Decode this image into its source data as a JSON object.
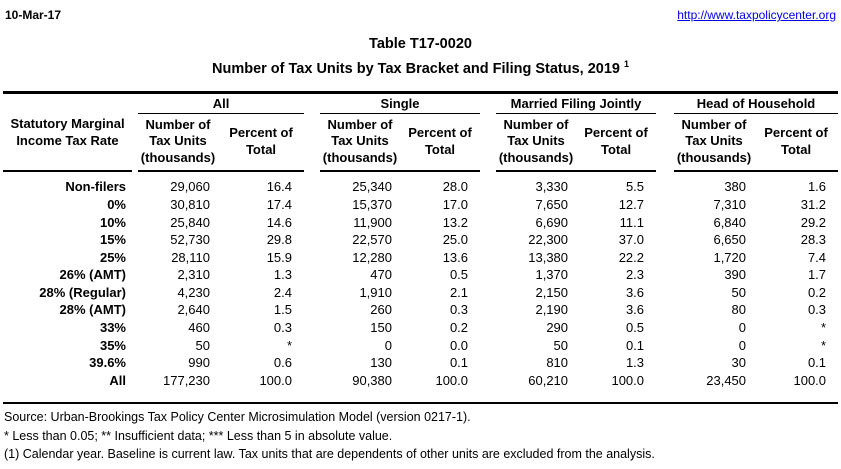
{
  "header": {
    "date": "10-Mar-17",
    "url": "http://www.taxpolicycenter.org"
  },
  "title": {
    "table_number": "Table T17-0020",
    "main": "Number of Tax Units by Tax Bracket and Filing Status, 2019",
    "footnote_ref": "1"
  },
  "table": {
    "row_header_label": "Statutory Marginal\nIncome Tax Rate",
    "groups": [
      {
        "label": "All"
      },
      {
        "label": "Single"
      },
      {
        "label": "Married Filing Jointly"
      },
      {
        "label": "Head of Household"
      }
    ],
    "sub_headers": {
      "number": "Number of\nTax Units\n(thousands)",
      "percent": "Percent of\nTotal"
    },
    "rows": [
      {
        "label": "Non-filers",
        "values": [
          "29,060",
          "16.4",
          "25,340",
          "28.0",
          "3,330",
          "5.5",
          "380",
          "1.6"
        ]
      },
      {
        "label": "0%",
        "values": [
          "30,810",
          "17.4",
          "15,370",
          "17.0",
          "7,650",
          "12.7",
          "7,310",
          "31.2"
        ]
      },
      {
        "label": "10%",
        "values": [
          "25,840",
          "14.6",
          "11,900",
          "13.2",
          "6,690",
          "11.1",
          "6,840",
          "29.2"
        ]
      },
      {
        "label": "15%",
        "values": [
          "52,730",
          "29.8",
          "22,570",
          "25.0",
          "22,300",
          "37.0",
          "6,650",
          "28.3"
        ]
      },
      {
        "label": "25%",
        "values": [
          "28,110",
          "15.9",
          "12,280",
          "13.6",
          "13,380",
          "22.2",
          "1,720",
          "7.4"
        ]
      },
      {
        "label": "26% (AMT)",
        "values": [
          "2,310",
          "1.3",
          "470",
          "0.5",
          "1,370",
          "2.3",
          "390",
          "1.7"
        ]
      },
      {
        "label": "28% (Regular)",
        "values": [
          "4,230",
          "2.4",
          "1,910",
          "2.1",
          "2,150",
          "3.6",
          "50",
          "0.2"
        ]
      },
      {
        "label": "28% (AMT)",
        "values": [
          "2,640",
          "1.5",
          "260",
          "0.3",
          "2,190",
          "3.6",
          "80",
          "0.3"
        ]
      },
      {
        "label": "33%",
        "values": [
          "460",
          "0.3",
          "150",
          "0.2",
          "290",
          "0.5",
          "0",
          "*"
        ]
      },
      {
        "label": "35%",
        "values": [
          "50",
          "*",
          "0",
          "0.0",
          "50",
          "0.1",
          "0",
          "*"
        ]
      },
      {
        "label": "39.6%",
        "values": [
          "990",
          "0.6",
          "130",
          "0.1",
          "810",
          "1.3",
          "30",
          "0.1"
        ]
      },
      {
        "label": "All",
        "values": [
          "177,230",
          "100.0",
          "90,380",
          "100.0",
          "60,210",
          "100.0",
          "23,450",
          "100.0"
        ]
      }
    ]
  },
  "footnotes": [
    "Source: Urban-Brookings Tax Policy Center Microsimulation Model (version 0217-1).",
    "* Less than 0.05; ** Insufficient data; *** Less than 5 in absolute value.",
    "(1) Calendar year. Baseline is current law. Tax units that are dependents of other units are excluded from the analysis."
  ],
  "colors": {
    "link": "#0000ee",
    "text": "#000000"
  }
}
